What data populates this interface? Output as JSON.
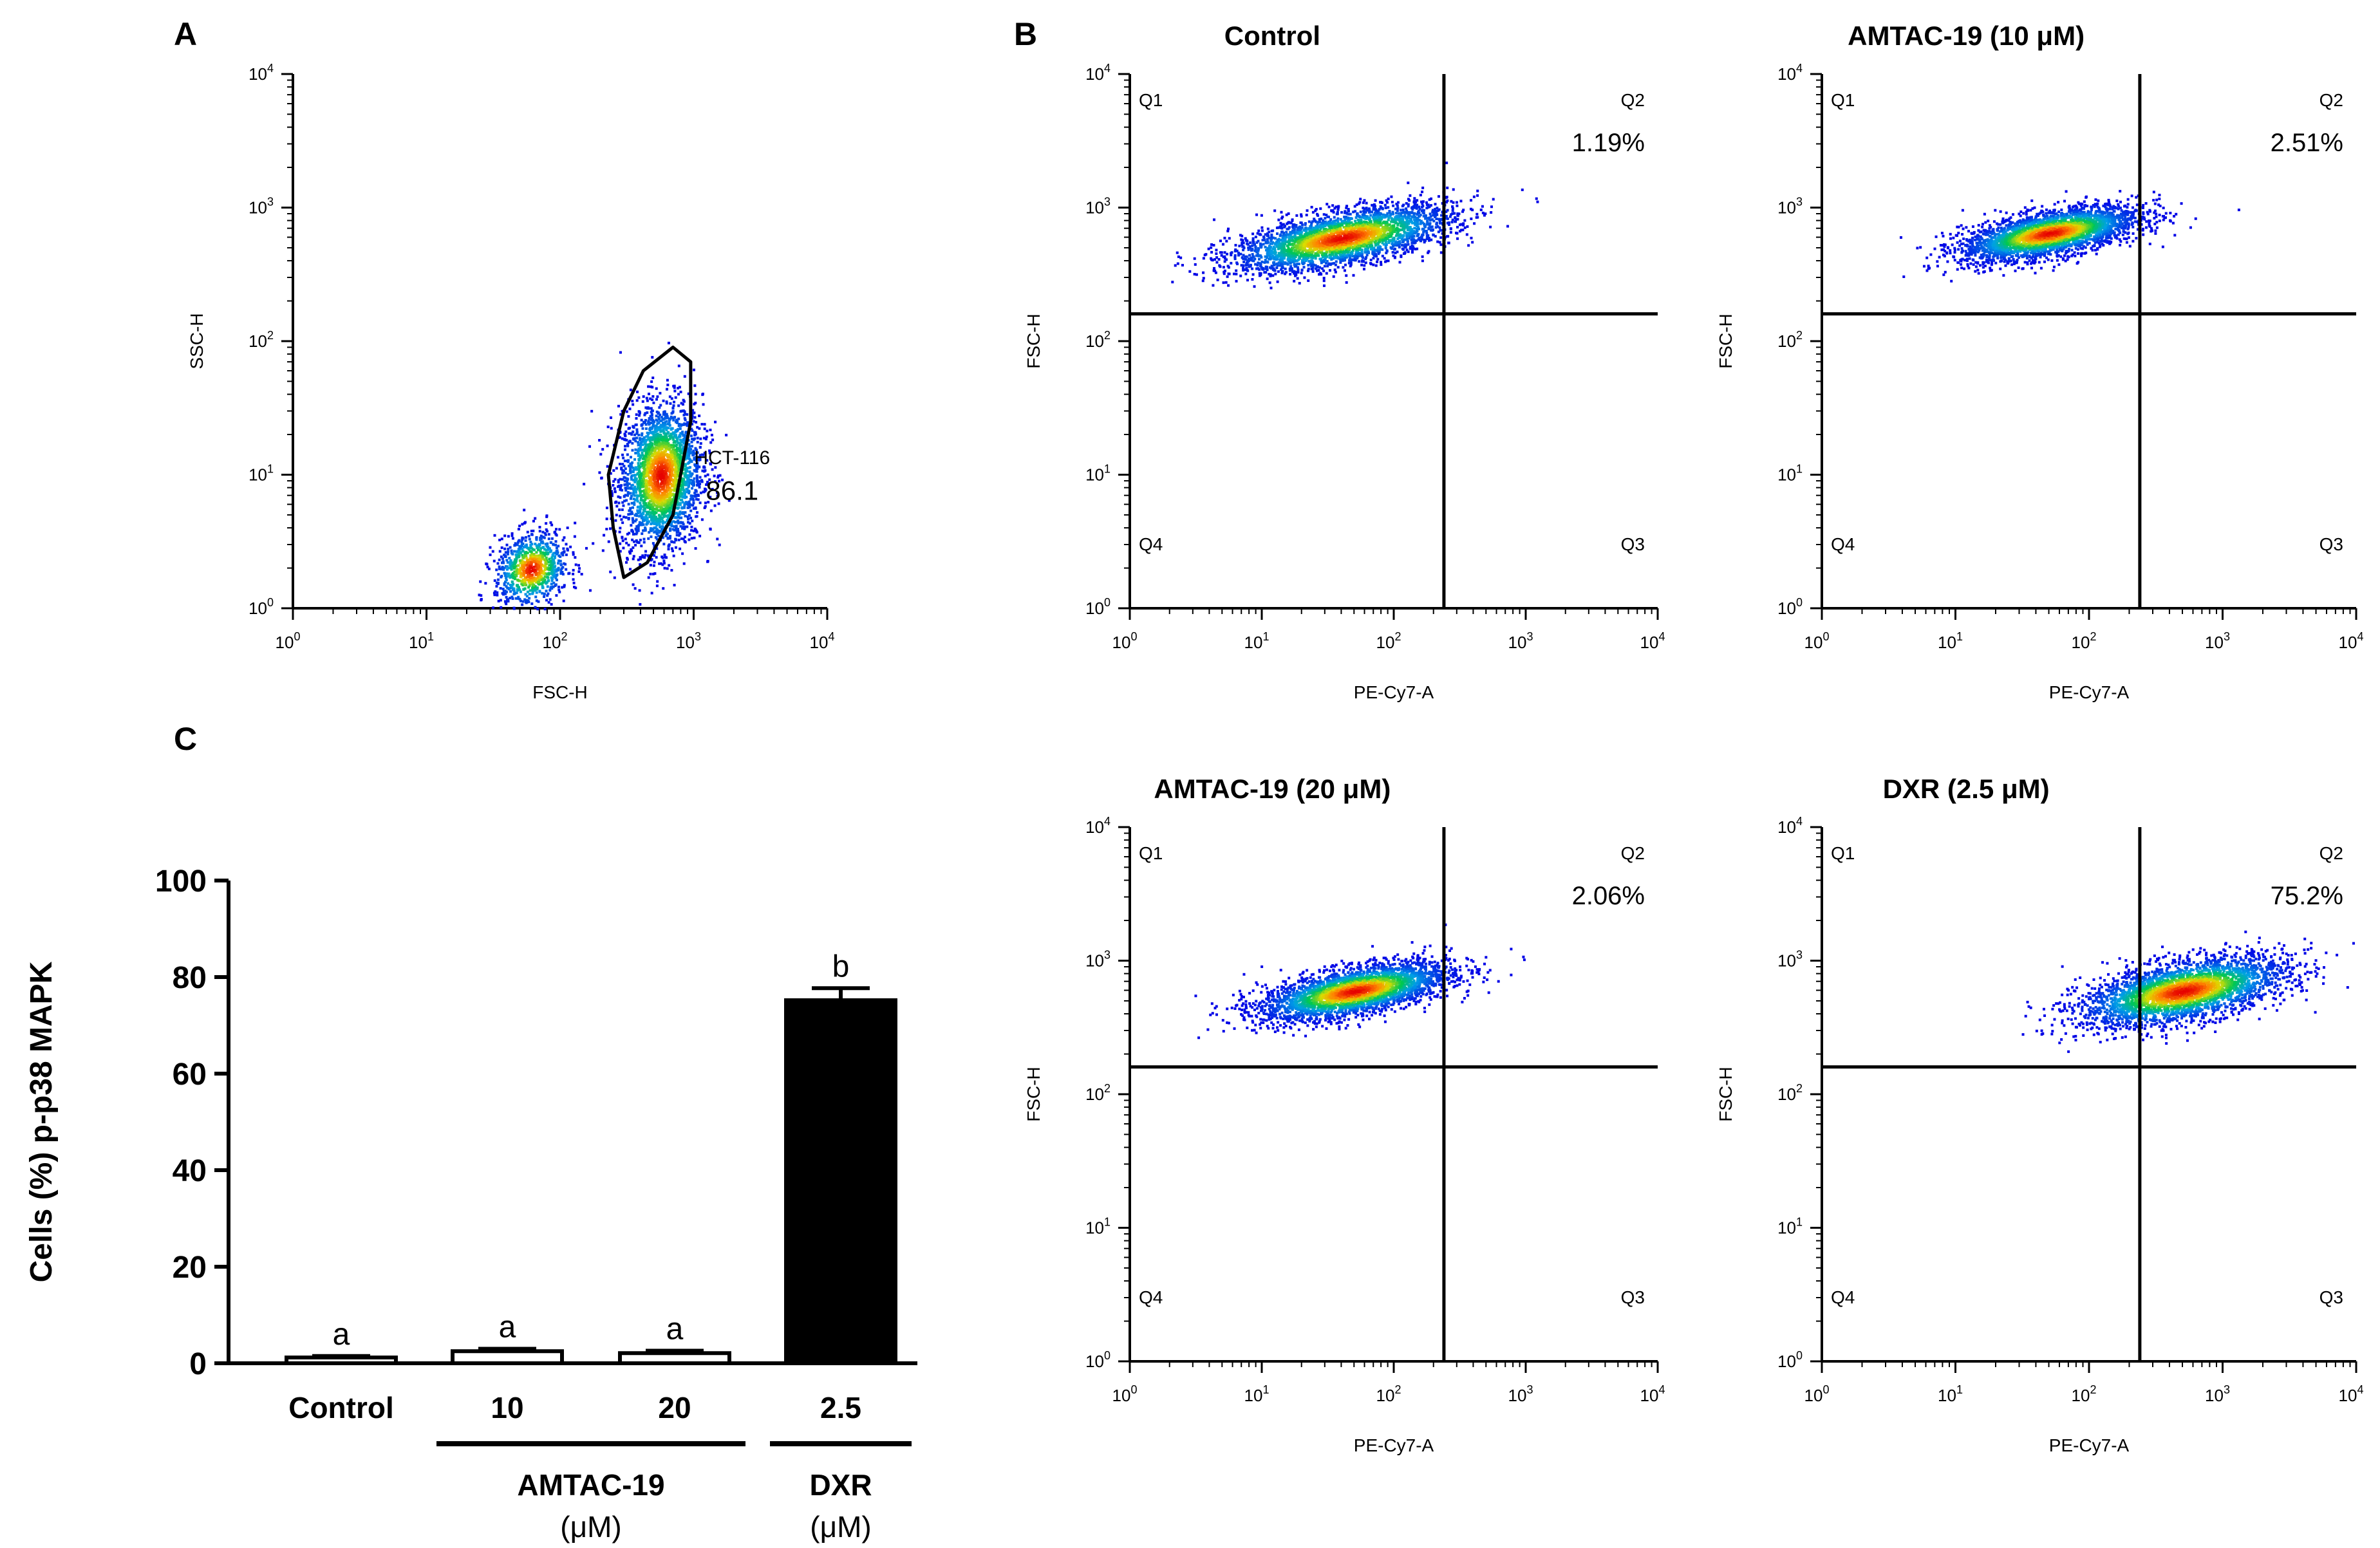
{
  "panel_labels": [
    "A",
    "B",
    "C"
  ],
  "chart_data": [
    {
      "type": "scatter",
      "panel": "A",
      "xlabel": "FSC-H",
      "ylabel": "SSC-H",
      "xscale": "log",
      "yscale": "log",
      "xlim": [
        1,
        10000
      ],
      "ylim": [
        1,
        10000
      ],
      "ticks": [
        1,
        10,
        100,
        1000,
        10000
      ],
      "gate": {
        "name": "HCT-116",
        "value": "86.1",
        "polygon": [
          [
            300,
            1.7
          ],
          [
            250,
            4
          ],
          [
            230,
            10
          ],
          [
            300,
            30
          ],
          [
            420,
            60
          ],
          [
            700,
            90
          ],
          [
            950,
            70
          ],
          [
            950,
            25
          ],
          [
            700,
            5
          ],
          [
            450,
            2.2
          ]
        ]
      },
      "populations": [
        {
          "name": "gated",
          "x_center": 560,
          "y_center": 10,
          "x_spread_decades": 0.28,
          "y_spread_decades": 0.5
        },
        {
          "name": "debris",
          "x_center": 60,
          "y_center": 2,
          "x_spread_decades": 0.25,
          "y_spread_decades": 0.25
        }
      ]
    },
    {
      "type": "scatter",
      "panel": "B",
      "title": "Control",
      "xlabel": "PE-Cy7-A",
      "ylabel": "FSC-H",
      "xscale": "log",
      "yscale": "log",
      "xlim": [
        1,
        10000
      ],
      "ylim": [
        1,
        10000
      ],
      "ticks": [
        1,
        10,
        100,
        1000,
        10000
      ],
      "quadrant_x": 240,
      "quadrant_y": 160,
      "quadrants": [
        "Q1",
        "Q2",
        "Q3",
        "Q4"
      ],
      "q2_percent": "1.19%",
      "population": {
        "x_center": 40,
        "y_center": 600,
        "x_spread_decades": 0.75,
        "y_spread_decades": 0.18
      }
    },
    {
      "type": "scatter",
      "panel": "B",
      "title": "AMTAC-19 (10 μM)",
      "xlabel": "PE-Cy7-A",
      "ylabel": "FSC-H",
      "xscale": "log",
      "yscale": "log",
      "xlim": [
        1,
        10000
      ],
      "ylim": [
        1,
        10000
      ],
      "ticks": [
        1,
        10,
        100,
        1000,
        10000
      ],
      "quadrant_x": 240,
      "quadrant_y": 160,
      "quadrants": [
        "Q1",
        "Q2",
        "Q3",
        "Q4"
      ],
      "q2_percent": "2.51%",
      "population": {
        "x_center": 50,
        "y_center": 650,
        "x_spread_decades": 0.6,
        "y_spread_decades": 0.15
      }
    },
    {
      "type": "scatter",
      "panel": "B",
      "title": "AMTAC-19 (20 μM)",
      "xlabel": "PE-Cy7-A",
      "ylabel": "FSC-H",
      "xscale": "log",
      "yscale": "log",
      "xlim": [
        1,
        10000
      ],
      "ylim": [
        1,
        10000
      ],
      "ticks": [
        1,
        10,
        100,
        1000,
        10000
      ],
      "quadrant_x": 240,
      "quadrant_y": 160,
      "quadrants": [
        "Q1",
        "Q2",
        "Q3",
        "Q4"
      ],
      "q2_percent": "2.06%",
      "population": {
        "x_center": 50,
        "y_center": 600,
        "x_spread_decades": 0.65,
        "y_spread_decades": 0.16
      }
    },
    {
      "type": "scatter",
      "panel": "B",
      "title": "DXR (2.5 μM)",
      "xlabel": "PE-Cy7-A",
      "ylabel": "FSC-H",
      "xscale": "log",
      "yscale": "log",
      "xlim": [
        1,
        10000
      ],
      "ylim": [
        1,
        10000
      ],
      "ticks": [
        1,
        10,
        100,
        1000,
        10000
      ],
      "quadrant_x": 240,
      "quadrant_y": 160,
      "quadrants": [
        "Q1",
        "Q2",
        "Q3",
        "Q4"
      ],
      "q2_percent": "75.2%",
      "population": {
        "x_center": 500,
        "y_center": 600,
        "x_spread_decades": 0.7,
        "y_spread_decades": 0.2
      }
    },
    {
      "type": "bar",
      "panel": "C",
      "ylabel": "Cells (%) p-p38 MAPK",
      "ylim": [
        0,
        100
      ],
      "yticks": [
        0,
        20,
        40,
        60,
        80,
        100
      ],
      "categories": [
        "Control",
        "10",
        "20",
        "2.5"
      ],
      "values": [
        1.2,
        2.5,
        2.1,
        75.2
      ],
      "errors": [
        0.3,
        0.5,
        0.5,
        2.5
      ],
      "letters": [
        "a",
        "a",
        "a",
        "b"
      ],
      "fills": [
        "#ffffff",
        "#ffffff",
        "#ffffff",
        "#000000"
      ],
      "groups": [
        {
          "label": "AMTAC-19",
          "unit": "(μM)",
          "categories": [
            "10",
            "20"
          ]
        },
        {
          "label": "DXR",
          "unit": "(μM)",
          "categories": [
            "2.5"
          ]
        }
      ]
    }
  ]
}
